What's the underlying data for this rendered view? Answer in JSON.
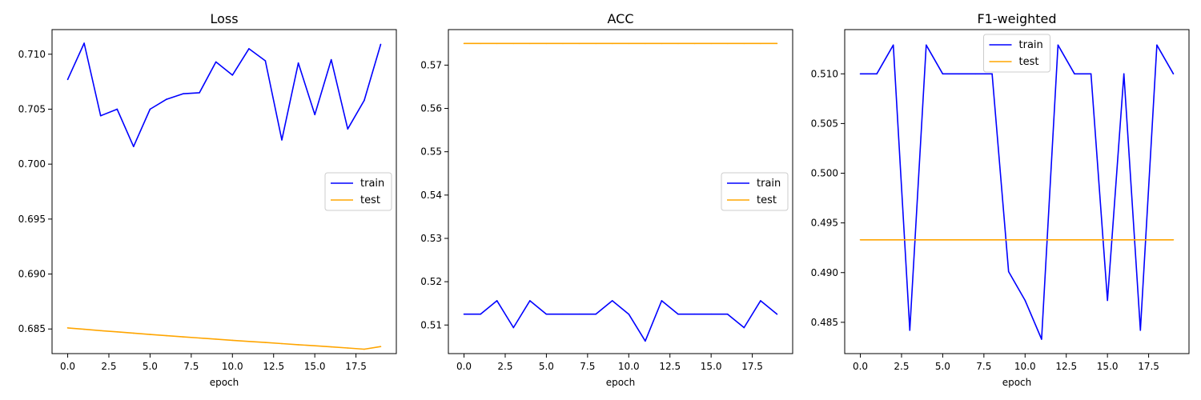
{
  "figure": {
    "background": "#ffffff",
    "train_color": "#0000ff",
    "test_color": "#ffa500"
  },
  "chart_data": [
    {
      "type": "line",
      "title": "Loss",
      "xlabel": "epoch",
      "ylabel": "",
      "xlim": [
        -0.95,
        19.95
      ],
      "ylim": [
        0.68276,
        0.71224
      ],
      "xticks": [
        0,
        2.5,
        5,
        7.5,
        10,
        12.5,
        15,
        17.5
      ],
      "xtick_labels": [
        "0.0",
        "2.5",
        "5.0",
        "7.5",
        "10.0",
        "12.5",
        "15.0",
        "17.5"
      ],
      "yticks": [
        0.685,
        0.69,
        0.695,
        0.7,
        0.705,
        0.71
      ],
      "ytick_labels": [
        "0.685",
        "0.690",
        "0.695",
        "0.700",
        "0.705",
        "0.710"
      ],
      "legend": "center-right",
      "grid": false,
      "x": [
        0,
        1,
        2,
        3,
        4,
        5,
        6,
        7,
        8,
        9,
        10,
        11,
        12,
        13,
        14,
        15,
        16,
        17,
        18,
        19
      ],
      "series": [
        {
          "name": "train",
          "color": "#0000ff",
          "values": [
            0.7077,
            0.711,
            0.7044,
            0.705,
            0.7016,
            0.705,
            0.7059,
            0.7064,
            0.7065,
            0.7093,
            0.7081,
            0.7105,
            0.7094,
            0.7022,
            0.7092,
            0.7045,
            0.7095,
            0.7032,
            0.7058,
            0.7109
          ]
        },
        {
          "name": "test",
          "color": "#ffa500",
          "values": [
            0.6851,
            0.68497,
            0.68485,
            0.68474,
            0.68462,
            0.6845,
            0.68439,
            0.68428,
            0.68418,
            0.68408,
            0.68397,
            0.68387,
            0.68377,
            0.68367,
            0.68357,
            0.68347,
            0.68337,
            0.68327,
            0.68316,
            0.6834
          ]
        }
      ]
    },
    {
      "type": "line",
      "title": "ACC",
      "xlabel": "epoch",
      "ylabel": "",
      "xlim": [
        -0.95,
        19.95
      ],
      "ylim": [
        0.5034,
        0.5782
      ],
      "xticks": [
        0,
        2.5,
        5,
        7.5,
        10,
        12.5,
        15,
        17.5
      ],
      "xtick_labels": [
        "0.0",
        "2.5",
        "5.0",
        "7.5",
        "10.0",
        "12.5",
        "15.0",
        "17.5"
      ],
      "yticks": [
        0.51,
        0.52,
        0.53,
        0.54,
        0.55,
        0.56,
        0.57
      ],
      "ytick_labels": [
        "0.51",
        "0.52",
        "0.53",
        "0.54",
        "0.55",
        "0.56",
        "0.57"
      ],
      "legend": "center-right",
      "grid": false,
      "x": [
        0,
        1,
        2,
        3,
        4,
        5,
        6,
        7,
        8,
        9,
        10,
        11,
        12,
        13,
        14,
        15,
        16,
        17,
        18,
        19
      ],
      "series": [
        {
          "name": "train",
          "color": "#0000ff",
          "values": [
            0.5125,
            0.5125,
            0.5156,
            0.5094,
            0.5156,
            0.5125,
            0.5125,
            0.5125,
            0.5125,
            0.5156,
            0.5125,
            0.5063,
            0.5156,
            0.5125,
            0.5125,
            0.5125,
            0.5125,
            0.5094,
            0.5156,
            0.5125
          ]
        },
        {
          "name": "test",
          "color": "#ffa500",
          "values": [
            0.575,
            0.575,
            0.575,
            0.575,
            0.575,
            0.575,
            0.575,
            0.575,
            0.575,
            0.575,
            0.575,
            0.575,
            0.575,
            0.575,
            0.575,
            0.575,
            0.575,
            0.575,
            0.575,
            0.575
          ]
        }
      ]
    },
    {
      "type": "line",
      "title": "F1-weighted",
      "xlabel": "epoch",
      "ylabel": "",
      "xlim": [
        -0.95,
        19.95
      ],
      "ylim": [
        0.48185,
        0.51445
      ],
      "xticks": [
        0,
        2.5,
        5,
        7.5,
        10,
        12.5,
        15,
        17.5
      ],
      "xtick_labels": [
        "0.0",
        "2.5",
        "5.0",
        "7.5",
        "10.0",
        "12.5",
        "15.0",
        "17.5"
      ],
      "yticks": [
        0.485,
        0.49,
        0.495,
        0.5,
        0.505,
        0.51
      ],
      "ytick_labels": [
        "0.485",
        "0.490",
        "0.495",
        "0.500",
        "0.505",
        "0.510"
      ],
      "legend": "top-center",
      "grid": false,
      "x": [
        0,
        1,
        2,
        3,
        4,
        5,
        6,
        7,
        8,
        9,
        10,
        11,
        12,
        13,
        14,
        15,
        16,
        17,
        18,
        19
      ],
      "series": [
        {
          "name": "train",
          "color": "#0000ff",
          "values": [
            0.51,
            0.51,
            0.5129,
            0.4842,
            0.5129,
            0.51,
            0.51,
            0.51,
            0.51,
            0.4901,
            0.4872,
            0.4833,
            0.5129,
            0.51,
            0.51,
            0.4872,
            0.51,
            0.4842,
            0.5129,
            0.51
          ]
        },
        {
          "name": "test",
          "color": "#ffa500",
          "values": [
            0.4933,
            0.4933,
            0.4933,
            0.4933,
            0.4933,
            0.4933,
            0.4933,
            0.4933,
            0.4933,
            0.4933,
            0.4933,
            0.4933,
            0.4933,
            0.4933,
            0.4933,
            0.4933,
            0.4933,
            0.4933,
            0.4933,
            0.4933
          ]
        }
      ]
    }
  ]
}
